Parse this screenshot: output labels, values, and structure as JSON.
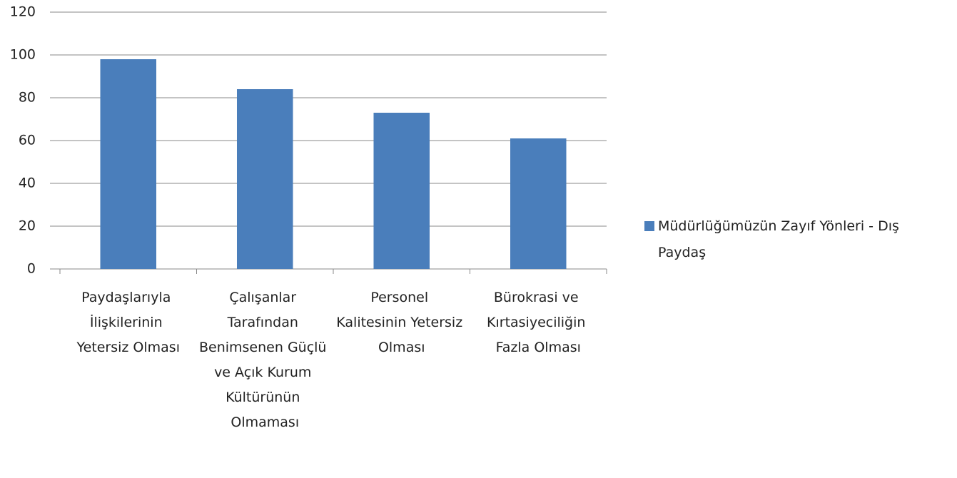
{
  "chart_data": {
    "type": "bar",
    "categories": [
      "Paydaşlarıyla İlişkilerinin Yetersiz Olması",
      "Çalışanlar Tarafından Benimsenen Güçlü ve Açık Kurum Kültürünün Olmaması",
      "Personel Kalitesinin Yetersiz Olması",
      "Bürokrasi ve Kırtasiyeciliğin Fazla Olması"
    ],
    "series": [
      {
        "name": "Müdürlüğümüzün Zayıf Yönleri - Dış Paydaş",
        "color": "#4a7ebb",
        "values": [
          98,
          84,
          73,
          61
        ]
      }
    ],
    "ylim": [
      0,
      120
    ],
    "yticks": [
      0,
      20,
      40,
      60,
      80,
      100,
      120
    ],
    "grid": true,
    "legend": "right"
  }
}
